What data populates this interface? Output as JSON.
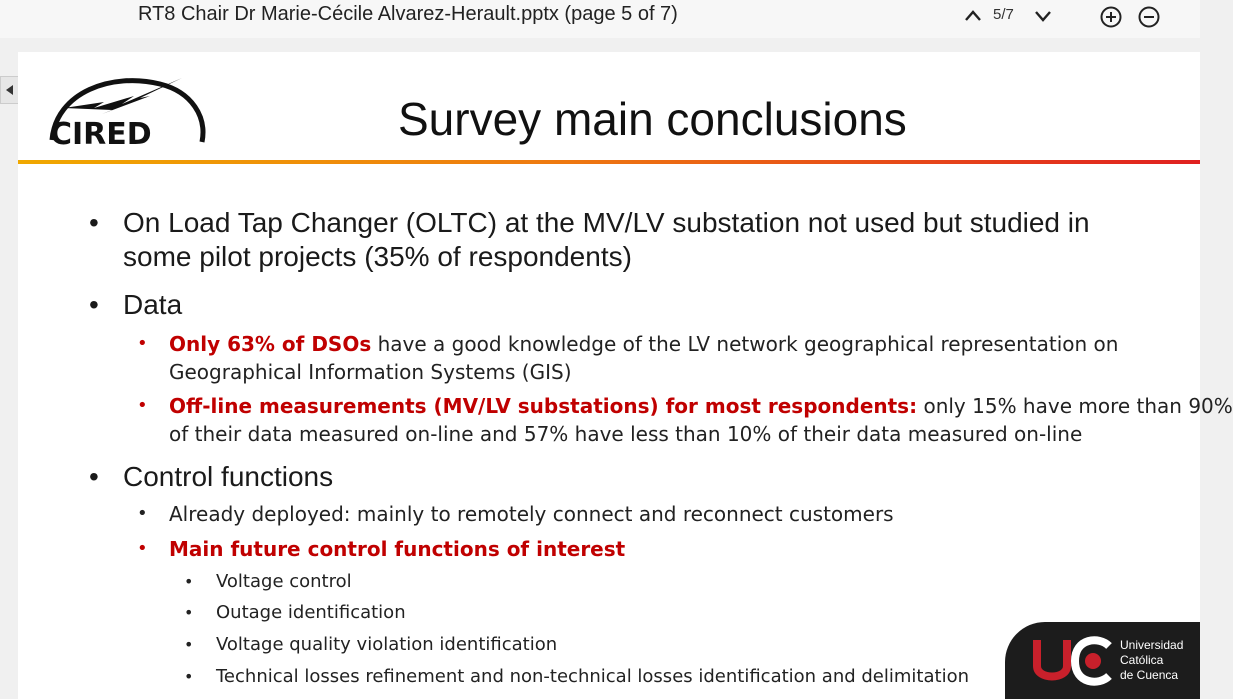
{
  "viewer": {
    "doc_title": "RT8 Chair Dr Marie-Cécile Alvarez-Herault.pptx (page 5 of 7)",
    "page_count": "5/7",
    "icons": {
      "prev": "chevron-up-icon",
      "next": "chevron-down-icon",
      "zoom_in": "zoom-in-icon",
      "zoom_out": "zoom-out-icon",
      "scroll": "caret-left-icon"
    }
  },
  "slide": {
    "logo_text": "CIRED",
    "title": "Survey main conclusions",
    "bullets": [
      {
        "text": "On Load Tap Changer (OLTC) at the MV/LV substation not used but studied in",
        "text2": "some pilot projects (35% of respondents)"
      },
      {
        "text": "Data",
        "sub": [
          {
            "highlight": "Only 63% of DSOs",
            "rest": " have a good knowledge of the LV network geographical representation on",
            "line2": "Geographical Information Systems (GIS)"
          },
          {
            "highlight": "Off-line measurements (MV/LV substations)  for most respondents:",
            "rest": " only 15% have more than 90%",
            "line2": "of their data measured on-line and 57% have less than 10% of their data measured on-line"
          }
        ]
      },
      {
        "text": "Control functions",
        "sub": [
          {
            "rest": "Already deployed:  mainly to remotely connect and reconnect customers"
          },
          {
            "highlight": "Main future control functions of interest",
            "items": [
              "Voltage control",
              "Outage identification",
              "Voltage quality violation identification",
              "Technical losses refinement and non-technical losses identification and delimitation"
            ]
          }
        ]
      }
    ]
  },
  "badge": {
    "line1": "Universidad",
    "line2": "Católica",
    "line3": "de Cuenca",
    "colors": {
      "bg": "#1c1c1c",
      "accent": "#c8202b"
    }
  },
  "colors": {
    "highlight": "#c00000",
    "rule_start": "#f0a800",
    "rule_end": "#e02020"
  }
}
